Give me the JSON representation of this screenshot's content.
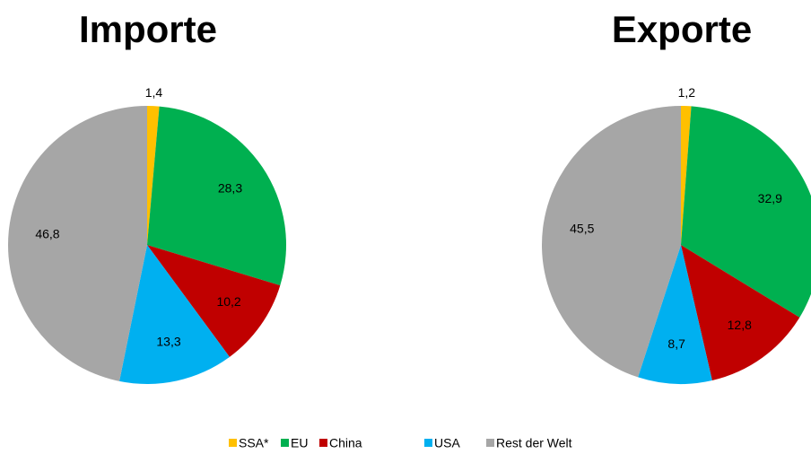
{
  "chart_data": [
    {
      "type": "pie",
      "title": "Importe",
      "categories": [
        "SSA*",
        "EU",
        "China",
        "USA",
        "Rest der Welt"
      ],
      "values": [
        1.4,
        28.3,
        10.2,
        13.3,
        46.8
      ],
      "value_labels": [
        "1,4",
        "28,3",
        "10,2",
        "13,3",
        "46,8"
      ],
      "colors": [
        "#ffc000",
        "#00b050",
        "#c00000",
        "#00b0f0",
        "#a6a6a6"
      ]
    },
    {
      "type": "pie",
      "title": "Exporte",
      "categories": [
        "SSA*",
        "EU",
        "China",
        "USA",
        "Rest der Welt"
      ],
      "values": [
        1.2,
        32.9,
        12.8,
        8.7,
        45.5
      ],
      "value_labels": [
        "1,2",
        "32,9",
        "12,8",
        "8,7",
        "45,5"
      ],
      "colors": [
        "#ffc000",
        "#00b050",
        "#c00000",
        "#00b0f0",
        "#a6a6a6"
      ]
    }
  ]
}
